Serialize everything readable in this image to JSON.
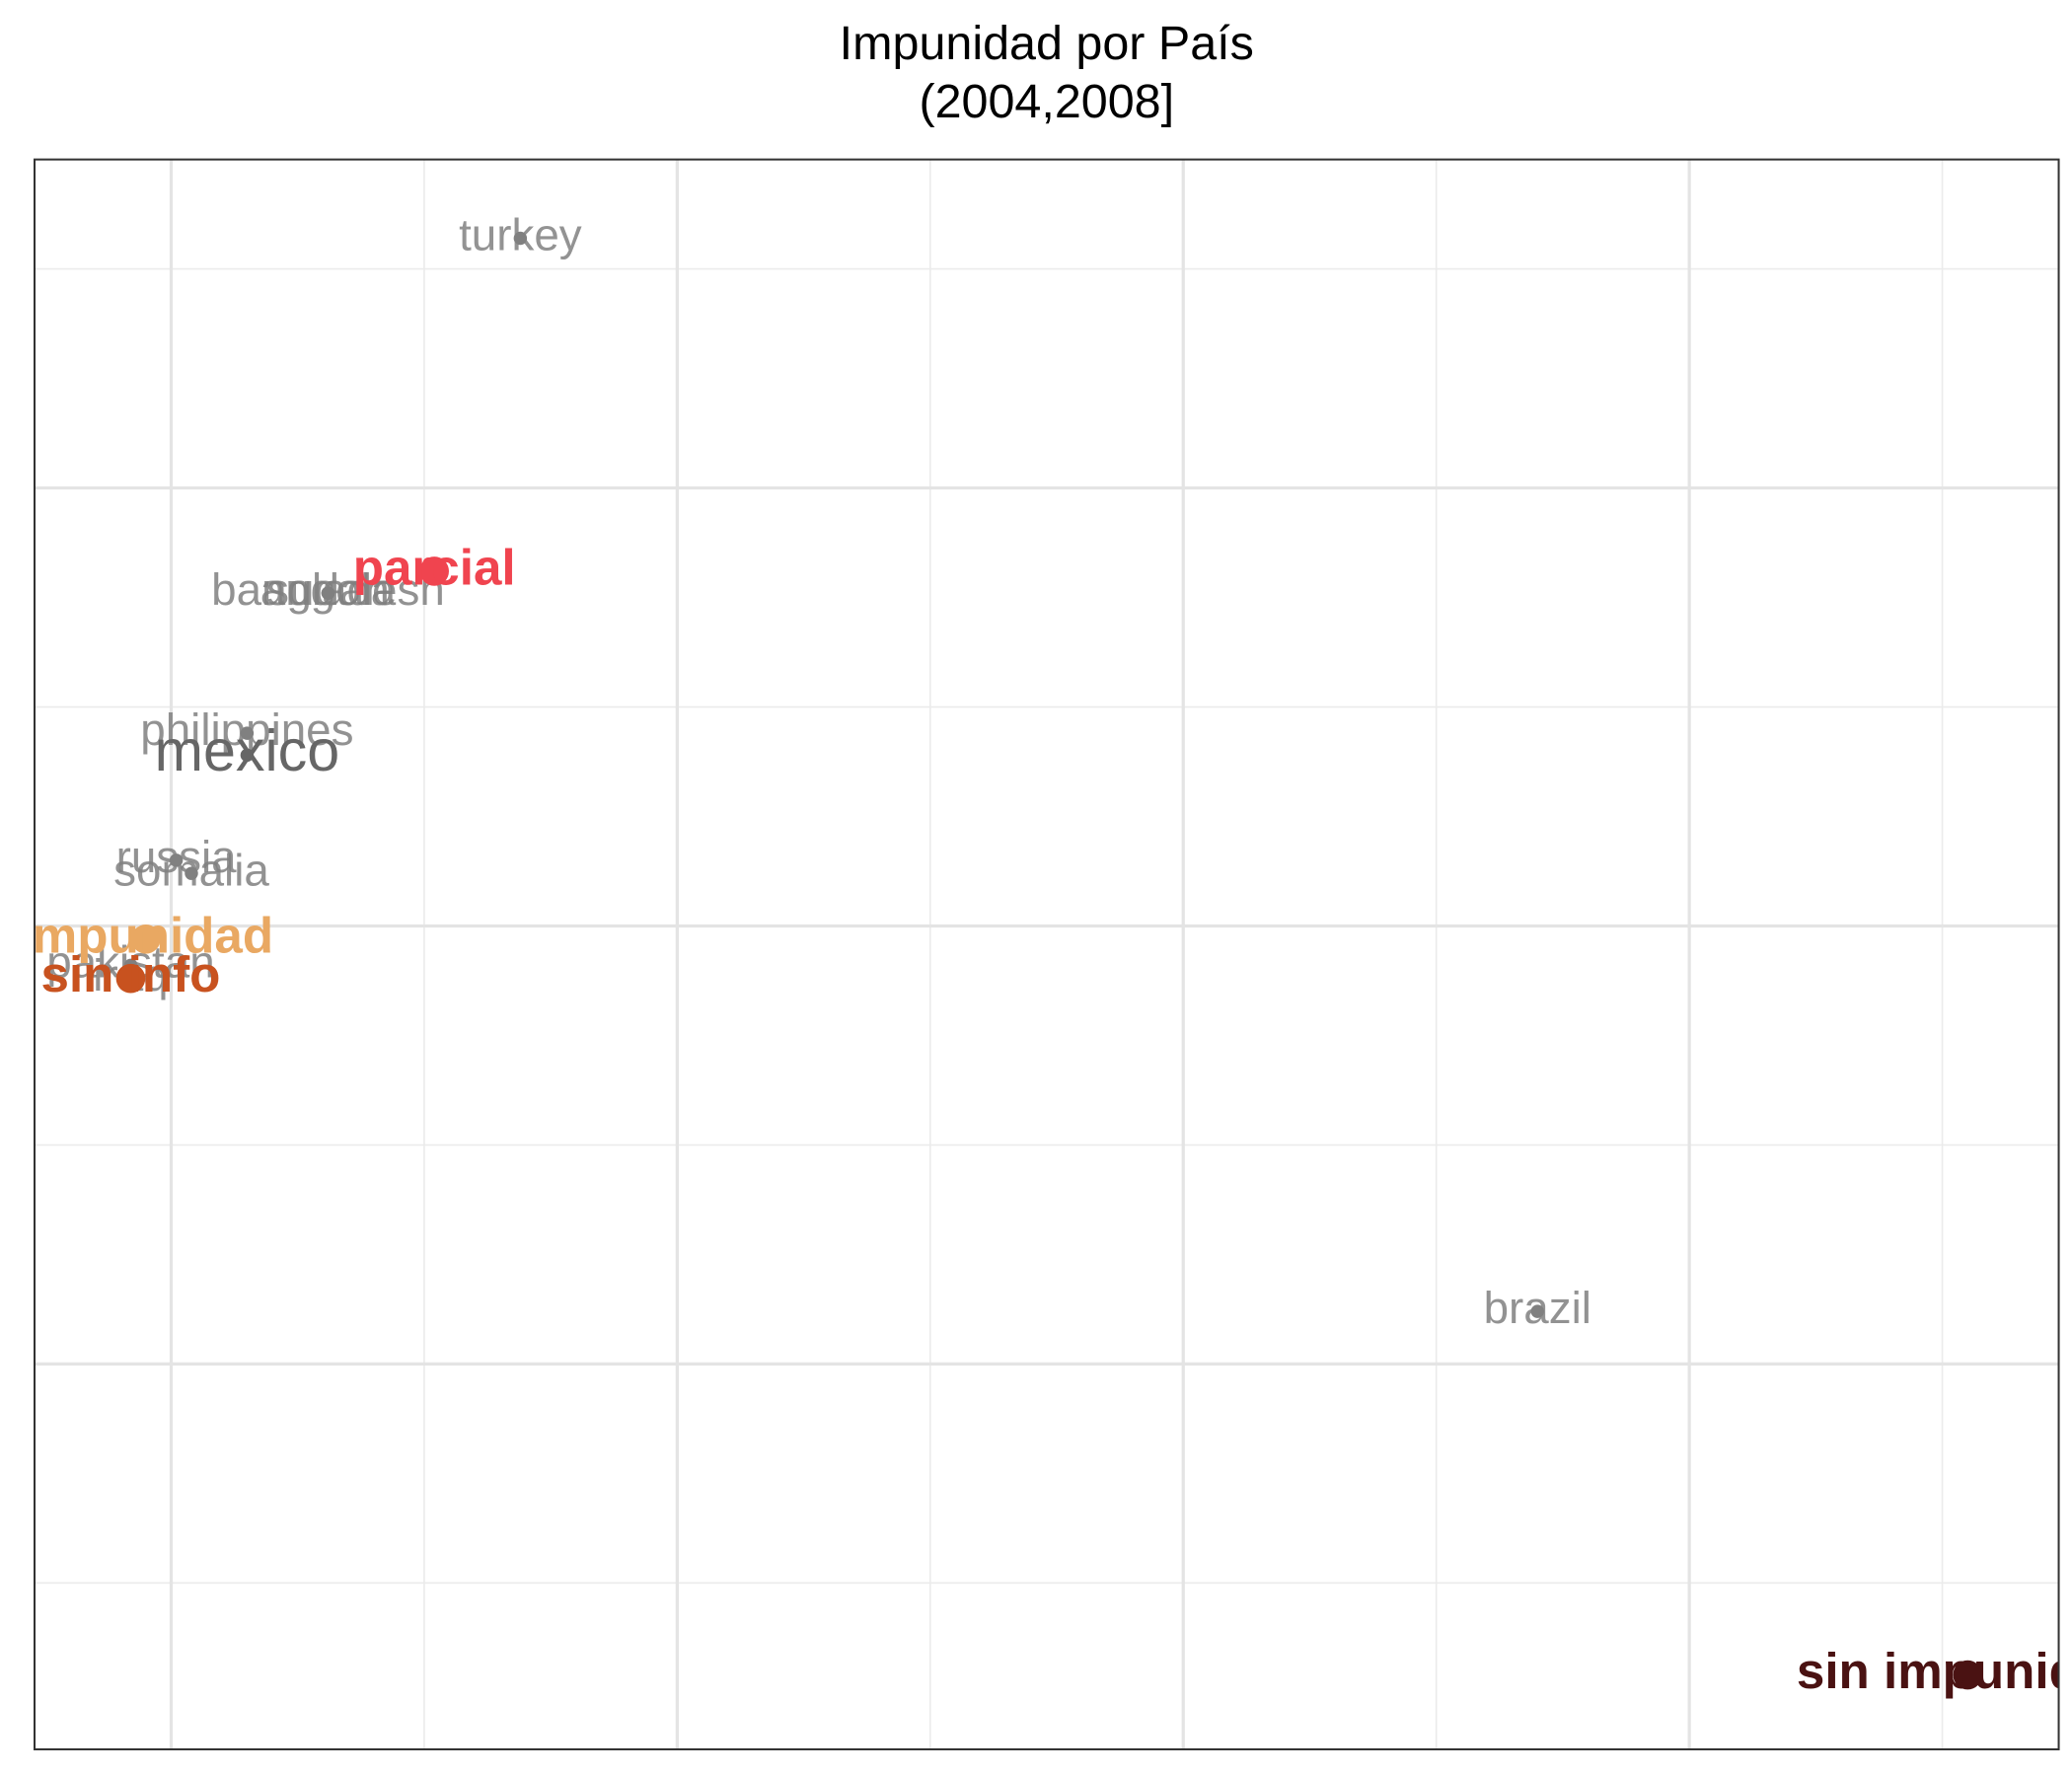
{
  "chart_data": {
    "type": "scatter",
    "title": "Impunidad por País",
    "subtitle": "(2004,2008]",
    "xlim": [
      -0.27,
      3.73
    ],
    "ylim": [
      -1.88,
      1.75
    ],
    "xticks": [
      0,
      1,
      2,
      3
    ],
    "yticks": [
      -1,
      0,
      1
    ],
    "xticks_minor": [
      0.5,
      1.5,
      2.5,
      3.5
    ],
    "yticks_minor": [
      -1.5,
      -0.5,
      0.5,
      1.5
    ],
    "grid": true,
    "points": [
      {
        "label": "turkey",
        "x": 0.69,
        "y": 1.57,
        "color": "#808080",
        "kind": "country"
      },
      {
        "label": "bangladesh",
        "x": 0.31,
        "y": 0.76,
        "color": "#808080",
        "kind": "country"
      },
      {
        "label": "angola",
        "x": 0.31,
        "y": 0.76,
        "color": "#808080",
        "kind": "country"
      },
      {
        "label": "sudan",
        "x": 0.31,
        "y": 0.76,
        "color": "#808080",
        "kind": "country"
      },
      {
        "label": "parcial",
        "x": 0.52,
        "y": 0.81,
        "color": "#f0444f",
        "kind": "category"
      },
      {
        "label": "philippines",
        "x": 0.15,
        "y": 0.44,
        "color": "#808080",
        "kind": "country"
      },
      {
        "label": "mexico",
        "x": 0.15,
        "y": 0.39,
        "color": "#666666",
        "kind": "focus"
      },
      {
        "label": "russia",
        "x": 0.01,
        "y": 0.15,
        "color": "#808080",
        "kind": "country"
      },
      {
        "label": "somalia",
        "x": 0.04,
        "y": 0.12,
        "color": "#808080",
        "kind": "country"
      },
      {
        "label": "pakistan",
        "x": -0.08,
        "y": -0.09,
        "color": "#808080",
        "kind": "country"
      },
      {
        "label": "iraq",
        "x": -0.08,
        "y": -0.12,
        "color": "#808080",
        "kind": "country"
      },
      {
        "label": "impunidad",
        "x": -0.05,
        "y": -0.03,
        "color": "#e9a862",
        "kind": "category"
      },
      {
        "label": "sin info",
        "x": -0.08,
        "y": -0.12,
        "color": "#c8521f",
        "kind": "category"
      },
      {
        "label": "brazil",
        "x": 2.7,
        "y": -0.88,
        "color": "#808080",
        "kind": "country"
      },
      {
        "label": "sin impunidad",
        "x": 3.55,
        "y": -1.71,
        "color": "#4a1212",
        "kind": "category"
      }
    ]
  }
}
